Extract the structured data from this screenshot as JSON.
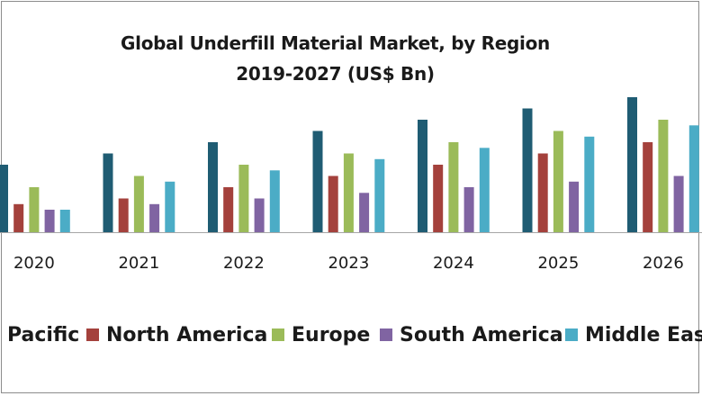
{
  "chart_data": {
    "type": "bar",
    "title": "Global Underfill Material Market, by Region",
    "subtitle": "2019-2027 (US$ Bn)",
    "xlabel": "",
    "ylabel": "",
    "categories": [
      "2020",
      "2021",
      "2022",
      "2023",
      "2024",
      "2025",
      "2026"
    ],
    "series": [
      {
        "name": "Asia Pacific",
        "color": "#1f5c73",
        "values": [
          6.0,
          7.0,
          8.0,
          9.0,
          10.0,
          11.0,
          12.0
        ]
      },
      {
        "name": "North America",
        "color": "#a4413c",
        "values": [
          2.5,
          3.0,
          4.0,
          5.0,
          6.0,
          7.0,
          8.0
        ]
      },
      {
        "name": "Europe",
        "color": "#9bbb59",
        "values": [
          4.0,
          5.0,
          6.0,
          7.0,
          8.0,
          9.0,
          10.0
        ]
      },
      {
        "name": "South America",
        "color": "#8064a2",
        "values": [
          2.0,
          2.5,
          3.0,
          3.5,
          4.0,
          4.5,
          5.0
        ]
      },
      {
        "name": "Middle East",
        "color": "#4bacc6",
        "values": [
          2.0,
          4.5,
          5.5,
          6.5,
          7.5,
          8.5,
          9.5
        ]
      }
    ],
    "ylim": [
      0,
      12.5
    ],
    "grid": false,
    "legend": "bottom",
    "legend_visible_labels": [
      "Pacific",
      "North America",
      "Europe",
      "South America",
      "Middle East"
    ]
  }
}
